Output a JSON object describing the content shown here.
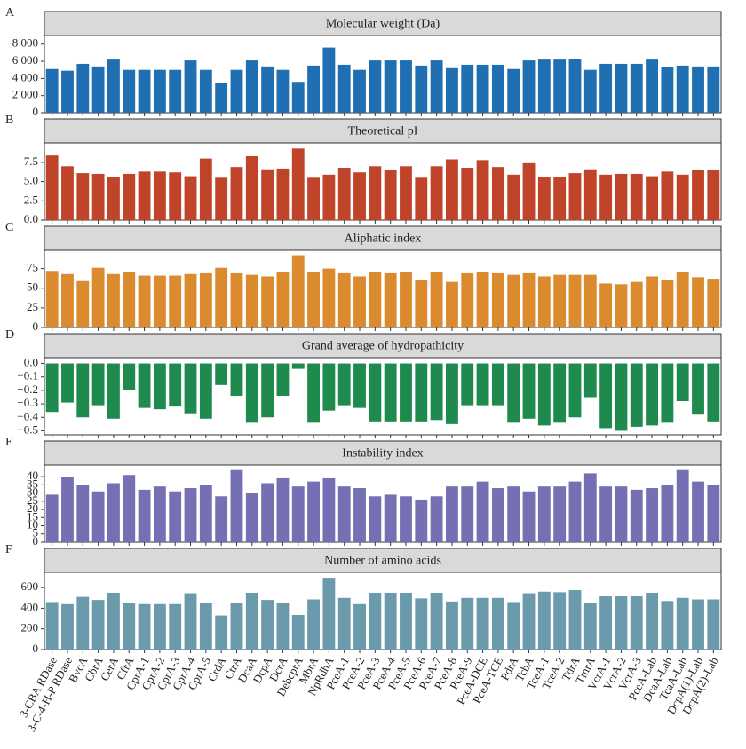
{
  "chart_data": [
    {
      "type": "bar",
      "panel": "A",
      "title": "Molecular weight (Da)",
      "color": "#1f6fb2",
      "values": [
        5100,
        4900,
        5700,
        5400,
        6200,
        5000,
        5000,
        5000,
        5000,
        6100,
        5000,
        3500,
        5000,
        6100,
        5400,
        5000,
        3600,
        5500,
        7600,
        5600,
        5000,
        6100,
        6100,
        6100,
        5500,
        6100,
        5200,
        5600,
        5600,
        5600,
        5100,
        6100,
        6200,
        6200,
        6300,
        5000,
        5700,
        5700,
        5700,
        6200,
        5300,
        5500,
        5400,
        5400
      ],
      "ylim": [
        0,
        8800
      ],
      "yticks": [
        0,
        {
          "value": 2000,
          "label": "2 000"
        },
        {
          "value": 4000,
          "label": "4 000"
        },
        {
          "value": 6000,
          "label": "6 000"
        },
        {
          "value": 8000,
          "label": "8 000"
        }
      ]
    },
    {
      "type": "bar",
      "panel": "B",
      "title": "Theoretical pI",
      "color": "#c0442a",
      "values": [
        8.4,
        7.0,
        6.1,
        6.0,
        5.6,
        6.0,
        6.3,
        6.3,
        6.2,
        5.7,
        8.0,
        5.5,
        6.9,
        8.3,
        6.6,
        6.7,
        9.3,
        5.5,
        5.9,
        6.8,
        6.2,
        7.0,
        6.5,
        7.0,
        5.5,
        7.0,
        7.9,
        6.8,
        7.8,
        6.9,
        5.9,
        7.4,
        5.6,
        5.6,
        6.1,
        6.6,
        5.9,
        6.0,
        6.0,
        5.7,
        6.3,
        5.9,
        6.5,
        6.5
      ],
      "ylim": [
        0,
        9.8
      ],
      "yticks": [
        {
          "value": 0,
          "label": "0.0"
        },
        2.5,
        {
          "value": 5,
          "label": "5.0"
        },
        7.5
      ]
    },
    {
      "type": "bar",
      "panel": "C",
      "title": "Aliphatic index",
      "color": "#dc8a2e",
      "values": [
        72,
        68,
        59,
        76,
        68,
        70,
        66,
        66,
        66,
        68,
        69,
        76,
        69,
        67,
        65,
        70,
        92,
        71,
        75,
        69,
        65,
        71,
        69,
        70,
        60,
        71,
        58,
        69,
        70,
        69,
        67,
        69,
        65,
        67,
        67,
        67,
        56,
        55,
        58,
        65,
        61,
        70,
        64,
        62
      ],
      "ylim": [
        0,
        96
      ],
      "yticks": [
        0,
        25,
        50,
        75
      ]
    },
    {
      "type": "bar",
      "panel": "D",
      "title": "Grand average of hydropathicity",
      "color": "#1e8a4e",
      "values": [
        -0.36,
        -0.29,
        -0.4,
        -0.31,
        -0.41,
        -0.2,
        -0.33,
        -0.34,
        -0.32,
        -0.37,
        -0.41,
        -0.16,
        -0.24,
        -0.44,
        -0.4,
        -0.24,
        -0.04,
        -0.44,
        -0.35,
        -0.31,
        -0.33,
        -0.43,
        -0.43,
        -0.43,
        -0.43,
        -0.42,
        -0.45,
        -0.31,
        -0.31,
        -0.31,
        -0.44,
        -0.41,
        -0.46,
        -0.44,
        -0.4,
        -0.25,
        -0.48,
        -0.5,
        -0.47,
        -0.46,
        -0.44,
        -0.28,
        -0.38,
        -0.43
      ],
      "ylim": [
        -0.53,
        0.03
      ],
      "yticks": [
        {
          "value": 0,
          "label": "0.0"
        },
        {
          "value": -0.1,
          "label": "−0.1"
        },
        {
          "value": -0.2,
          "label": "−0.2"
        },
        {
          "value": -0.3,
          "label": "−0.3"
        },
        {
          "value": -0.4,
          "label": "−0.4"
        },
        {
          "value": -0.5,
          "label": "−0.5"
        }
      ]
    },
    {
      "type": "bar",
      "panel": "E",
      "title": "Instability index",
      "color": "#7570b3",
      "values": [
        29,
        40,
        35,
        31,
        36,
        41,
        32,
        34,
        31,
        33,
        35,
        28,
        44,
        30,
        36,
        39,
        34,
        37,
        39,
        34,
        33,
        28,
        29,
        28,
        26,
        28,
        34,
        34,
        37,
        33,
        34,
        31,
        34,
        34,
        37,
        42,
        34,
        34,
        32,
        33,
        35,
        44,
        37,
        35
      ],
      "ylim": [
        0,
        46
      ],
      "yticks": [
        0,
        5,
        10,
        15,
        20,
        25,
        30,
        35,
        40
      ]
    },
    {
      "type": "bar",
      "panel": "F",
      "title": "Number of amino acids",
      "color": "#6a9aab",
      "categories": [
        "3-CBA RDase",
        "3-C-4-H-P RDase",
        "BvcA",
        "CbrA",
        "CerA",
        "CfrA",
        "CprA-1",
        "CprA-2",
        "CprA-3",
        "CprA-4",
        "CprA-5",
        "CrdA",
        "CtrA",
        "DcaA",
        "DcpA",
        "DcrA",
        "DebcprA",
        "MbrA",
        "NpRdhA",
        "PceA-1",
        "PceA-2",
        "PceA-3",
        "PceA-4",
        "PceA-5",
        "PceA-6",
        "PceA-7",
        "PceA-8",
        "PceA-9",
        "PceA-DCE",
        "PceA-TCE",
        "PdrA",
        "TcbA",
        "TceA-1",
        "TceA-2",
        "TdrA",
        "TmrA",
        "VcrA-1",
        "VcrA-2",
        "VcrA-3",
        "PceA-Lab",
        "DcaA-Lab",
        "TcaA-Lab",
        "DcpA(1)-Lab",
        "DcpA(2)-Lab"
      ],
      "values": [
        460,
        440,
        510,
        480,
        550,
        450,
        440,
        440,
        440,
        545,
        450,
        330,
        450,
        550,
        480,
        450,
        335,
        485,
        695,
        500,
        440,
        550,
        550,
        550,
        495,
        550,
        465,
        500,
        500,
        500,
        460,
        545,
        560,
        555,
        575,
        450,
        515,
        515,
        515,
        550,
        470,
        500,
        485,
        485
      ],
      "ylim": [
        0,
        730
      ],
      "yticks": [
        0,
        200,
        400,
        600
      ]
    }
  ]
}
